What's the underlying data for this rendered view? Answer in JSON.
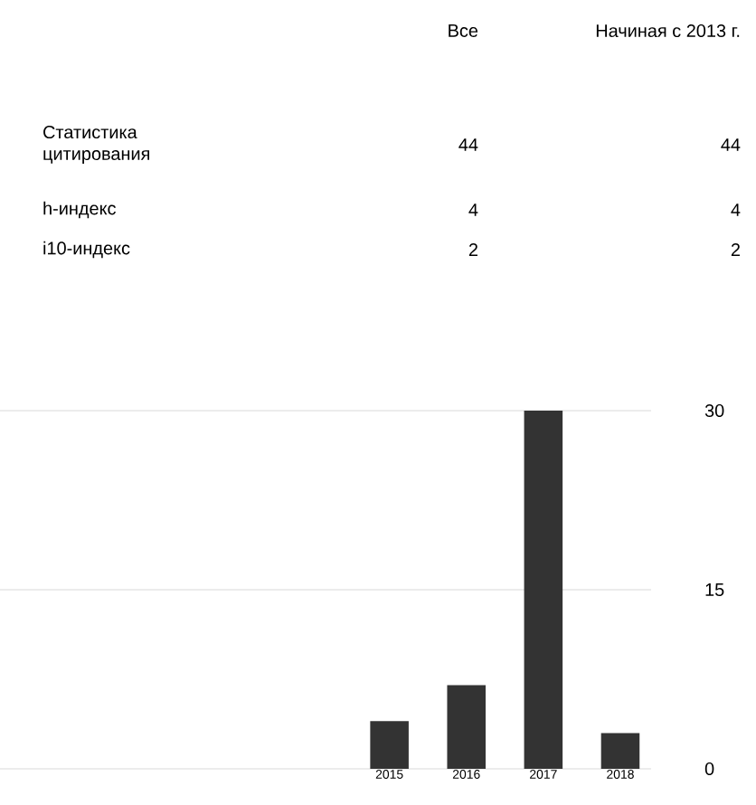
{
  "chart_data": [
    {
      "type": "other",
      "annotations": [
        "Все",
        "Начиная с 2013 г.",
        "Статистика цитирования",
        "44",
        "44",
        "h-индекс",
        "4",
        "4",
        "i10-индекс",
        "2",
        "2"
      ]
    },
    {
      "type": "bar",
      "categories": [
        "2015",
        "2016",
        "2017",
        "2018"
      ],
      "values": [
        4,
        7,
        30,
        3
      ],
      "color": "#333333",
      "ylim": [
        0,
        30
      ],
      "yticks": [
        0,
        15,
        30
      ],
      "grid": "y"
    }
  ]
}
